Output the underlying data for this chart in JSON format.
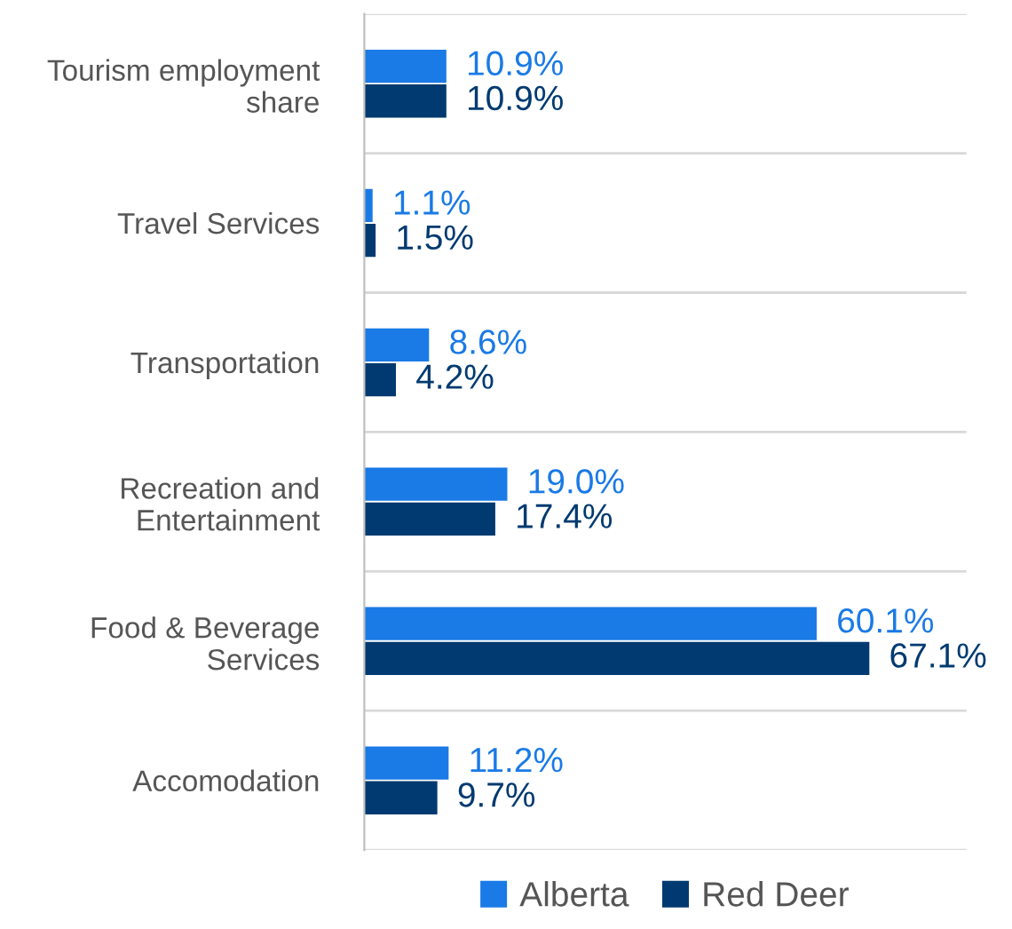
{
  "chart_data": {
    "type": "bar",
    "orientation": "horizontal",
    "categories": [
      "Tourism employment\nshare",
      "Travel Services",
      "Transportation",
      "Recreation and\nEntertainment",
      "Food & Beverage\nServices",
      "Accomodation"
    ],
    "series": [
      {
        "name": "Alberta",
        "color": "#1a7ae6",
        "values": [
          10.9,
          1.1,
          8.6,
          19.0,
          60.1,
          11.2
        ],
        "value_labels": [
          "10.9%",
          "1.1%",
          "8.6%",
          "19.0%",
          "60.1%",
          "11.2%"
        ]
      },
      {
        "name": "Red Deer",
        "color": "#003a70",
        "values": [
          10.9,
          1.5,
          4.2,
          17.4,
          67.1,
          9.7
        ],
        "value_labels": [
          "10.9%",
          "1.5%",
          "4.2%",
          "17.4%",
          "67.1%",
          "9.7%"
        ]
      }
    ],
    "xlim": [
      0,
      80
    ],
    "tick_labels": "y",
    "grid": "y",
    "legend": "bottom"
  }
}
